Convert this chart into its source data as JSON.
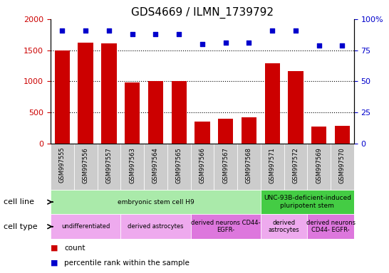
{
  "title": "GDS4669 / ILMN_1739792",
  "samples": [
    "GSM997555",
    "GSM997556",
    "GSM997557",
    "GSM997563",
    "GSM997564",
    "GSM997565",
    "GSM997566",
    "GSM997567",
    "GSM997568",
    "GSM997571",
    "GSM997572",
    "GSM997569",
    "GSM997570"
  ],
  "counts": [
    1500,
    1620,
    1610,
    980,
    1005,
    1005,
    355,
    400,
    415,
    1290,
    1165,
    275,
    280
  ],
  "percentiles": [
    91,
    91,
    91,
    88,
    88,
    88,
    80,
    81,
    81,
    91,
    91,
    79,
    79
  ],
  "ylim_left": [
    0,
    2000
  ],
  "ylim_right": [
    0,
    100
  ],
  "yticks_left": [
    0,
    500,
    1000,
    1500,
    2000
  ],
  "yticks_right": [
    0,
    25,
    50,
    75,
    100
  ],
  "bar_color": "#cc0000",
  "dot_color": "#0000cc",
  "cell_line_data": [
    {
      "label": "embryonic stem cell H9",
      "start": 0,
      "end": 9,
      "color": "#aaeaaa"
    },
    {
      "label": "UNC-93B-deficient-induced\npluripotent stem",
      "start": 9,
      "end": 13,
      "color": "#44cc44"
    }
  ],
  "cell_type_data": [
    {
      "label": "undifferentiated",
      "start": 0,
      "end": 3,
      "color": "#eeaaee"
    },
    {
      "label": "derived astrocytes",
      "start": 3,
      "end": 6,
      "color": "#eeaaee"
    },
    {
      "label": "derived neurons CD44-\nEGFR-",
      "start": 6,
      "end": 9,
      "color": "#dd77dd"
    },
    {
      "label": "derived\nastrocytes",
      "start": 9,
      "end": 11,
      "color": "#eeaaee"
    },
    {
      "label": "derived neurons\nCD44- EGFR-",
      "start": 11,
      "end": 13,
      "color": "#dd77dd"
    }
  ],
  "legend_count_color": "#cc0000",
  "legend_pct_color": "#0000cc",
  "tick_label_color_left": "#cc0000",
  "tick_label_color_right": "#0000cc",
  "grid_dotted_at": [
    500,
    1000,
    1500
  ],
  "right_ytick_labels": [
    "0",
    "25",
    "50",
    "75",
    "100%"
  ]
}
